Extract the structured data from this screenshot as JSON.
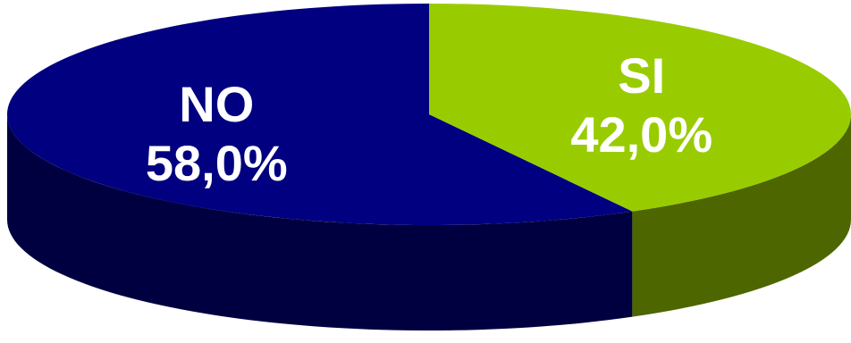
{
  "chart_data": {
    "type": "pie",
    "style": "3d",
    "legend": "none",
    "title": "",
    "slices": [
      {
        "label": "NO",
        "value": 58.0,
        "value_label": "58,0%",
        "color": "#000080",
        "side_color": "#000040",
        "label_color": "#ffffff"
      },
      {
        "label": "SI",
        "value": 42.0,
        "value_label": "42,0%",
        "color": "#99cc00",
        "side_color": "#4d6600",
        "label_color": "#ffffff"
      }
    ]
  }
}
